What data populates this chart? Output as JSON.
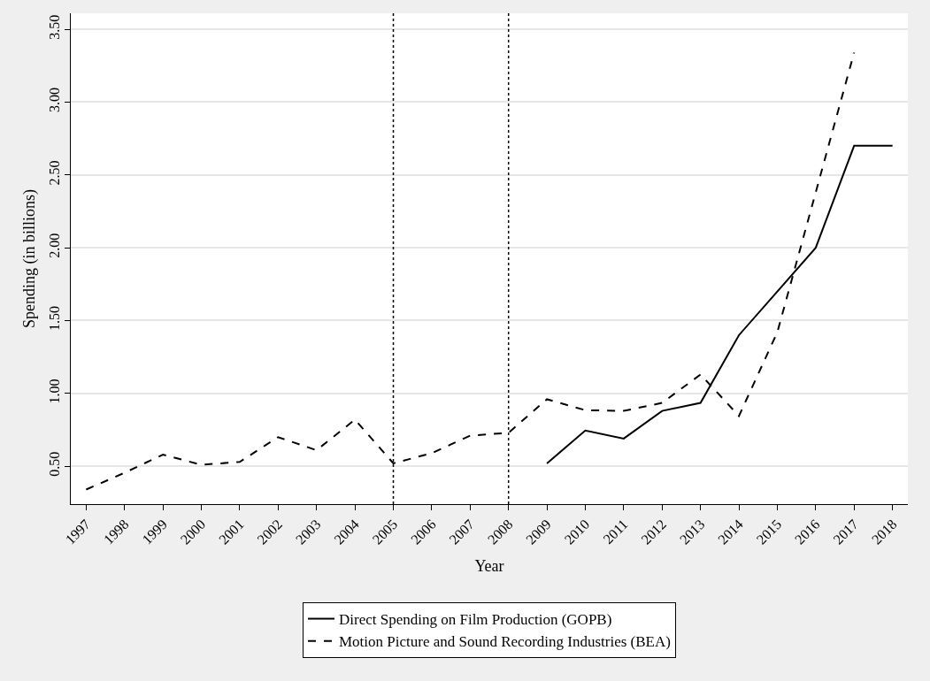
{
  "chart_data": {
    "type": "line",
    "xlabel": "Year",
    "ylabel": "Spending (in billions)",
    "xlim": [
      1996.6,
      2018.4
    ],
    "ylim": [
      0.24,
      3.61
    ],
    "xticks": [
      1997,
      1998,
      1999,
      2000,
      2001,
      2002,
      2003,
      2004,
      2005,
      2006,
      2007,
      2008,
      2009,
      2010,
      2011,
      2012,
      2013,
      2014,
      2015,
      2016,
      2017,
      2018
    ],
    "yticks": [
      {
        "value": 0.5,
        "label": "0.50"
      },
      {
        "value": 1,
        "label": "1.00"
      },
      {
        "value": 1.5,
        "label": "1.50"
      },
      {
        "value": 2,
        "label": "2.00"
      },
      {
        "value": 2.5,
        "label": "2.50"
      },
      {
        "value": 3,
        "label": "3.00"
      },
      {
        "value": 3.5,
        "label": "3.50"
      }
    ],
    "x": [
      1997,
      1998,
      1999,
      2000,
      2001,
      2002,
      2003,
      2004,
      2005,
      2006,
      2007,
      2008,
      2009,
      2010,
      2011,
      2012,
      2013,
      2014,
      2015,
      2016,
      2017,
      2018
    ],
    "series": [
      {
        "name": "Direct Spending on Film Production (GOPB)",
        "color": "#000000",
        "line_style": "solid",
        "values": [
          null,
          null,
          null,
          null,
          null,
          null,
          null,
          null,
          null,
          null,
          null,
          null,
          0.52,
          0.745,
          0.69,
          0.88,
          0.935,
          1.4,
          1.7,
          2.0,
          2.7,
          2.7
        ]
      },
      {
        "name": "Motion Picture and Sound Recording Industries (BEA)",
        "color": "#000000",
        "line_style": "dashed",
        "values": [
          0.34,
          0.455,
          0.58,
          0.51,
          0.53,
          0.7,
          0.61,
          0.82,
          0.52,
          0.59,
          0.71,
          0.73,
          0.96,
          0.885,
          0.88,
          0.935,
          1.13,
          0.845,
          1.42,
          2.38,
          3.34,
          null
        ]
      }
    ],
    "ref_lines": [
      {
        "axis": "x",
        "value": 2005,
        "color": "#000000",
        "line_style": "dotted"
      },
      {
        "axis": "x",
        "value": 2008,
        "color": "#000000",
        "line_style": "dotted"
      }
    ],
    "grid": "y",
    "legend": "bottom",
    "marker": "none"
  }
}
